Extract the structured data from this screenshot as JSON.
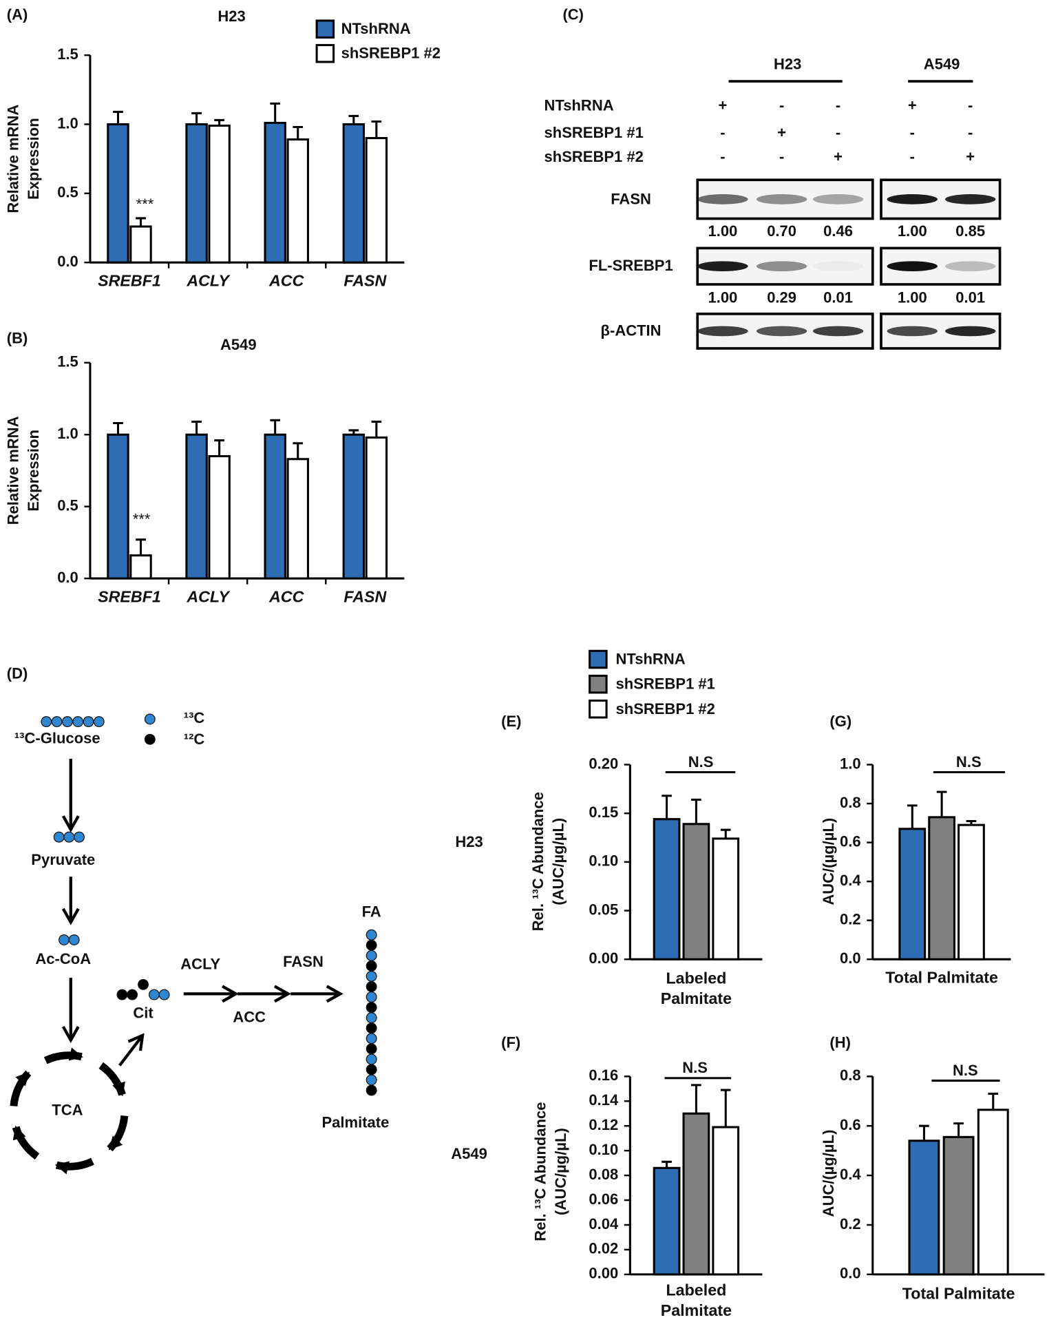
{
  "chart_data": [
    {
      "type": "bar",
      "panel": "(A)",
      "title": "H23",
      "y_label": [
        "Relative mRNA",
        "Expression"
      ],
      "categories": [
        "SREBF1",
        "ACLY",
        "ACC",
        "FASN"
      ],
      "series": [
        {
          "name": "NTshRNA",
          "color": "#2e6db4",
          "values": [
            1.0,
            1.0,
            1.01,
            1.0
          ],
          "errors": [
            0.09,
            0.08,
            0.14,
            0.06
          ]
        },
        {
          "name": "shSREBP1 #2",
          "color": "#ffffff",
          "values": [
            0.26,
            0.99,
            0.89,
            0.9
          ],
          "errors": [
            0.06,
            0.04,
            0.09,
            0.12
          ]
        }
      ],
      "annotation": "***",
      "ylim": [
        0,
        1.5
      ],
      "yticks": [
        {
          "value": 0,
          "label": "0.0"
        },
        0.5,
        {
          "value": 1,
          "label": "1.0"
        },
        1.5
      ],
      "legend": true,
      "grid": false
    },
    {
      "type": "bar",
      "panel": "(B)",
      "title": "A549",
      "y_label": [
        "Relative mRNA",
        "Expression"
      ],
      "categories": [
        "SREBF1",
        "ACLY",
        "ACC",
        "FASN"
      ],
      "series": [
        {
          "color": "#2e6db4",
          "values": [
            1.0,
            1.0,
            1.0,
            1.0
          ],
          "errors": [
            0.08,
            0.09,
            0.1,
            0.03
          ]
        },
        {
          "color": "#ffffff",
          "values": [
            0.16,
            0.85,
            0.83,
            0.98
          ],
          "errors": [
            0.11,
            0.11,
            0.11,
            0.11
          ]
        }
      ],
      "annotation": "***",
      "ylim": [
        0,
        1.5
      ],
      "yticks": [
        {
          "value": 0,
          "label": "0.0"
        },
        0.5,
        {
          "value": 1,
          "label": "1.0"
        },
        1.5
      ],
      "legend": false,
      "grid": false
    },
    {
      "type": "bar",
      "panel": "(E)",
      "row_label": "H23",
      "y_label": [
        "Rel. ¹³C Abundance",
        "(AUC/µg/µL)"
      ],
      "categories": [
        "Labeled Palmitate"
      ],
      "series": [
        {
          "name": "NTshRNA",
          "color": "#2e6db4",
          "values": [
            0.144
          ],
          "errors": [
            0.024
          ]
        },
        {
          "name": "shSREBP1 #1",
          "color": "#808080",
          "values": [
            0.139
          ],
          "errors": [
            0.025
          ]
        },
        {
          "name": "shSREBP1 #2",
          "color": "#ffffff",
          "values": [
            0.124
          ],
          "errors": [
            0.009
          ]
        }
      ],
      "annotation": "N.S",
      "ylim": [
        0,
        0.2
      ],
      "yticks": [
        {
          "value": 0,
          "label": "0.00"
        },
        0.05,
        {
          "value": 0.1,
          "label": "0.10"
        },
        0.15,
        {
          "value": 0.2,
          "label": "0.20"
        }
      ],
      "legend": true,
      "grid": false
    },
    {
      "type": "bar",
      "panel": "(G)",
      "y_label": [
        "AUC/(µg/µL)"
      ],
      "categories": [
        "Total Palmitate"
      ],
      "series": [
        {
          "color": "#2e6db4",
          "values": [
            0.67
          ],
          "errors": [
            0.12
          ]
        },
        {
          "color": "#808080",
          "values": [
            0.73
          ],
          "errors": [
            0.13
          ]
        },
        {
          "color": "#ffffff",
          "values": [
            0.69
          ],
          "errors": [
            0.02
          ]
        }
      ],
      "annotation": "N.S",
      "ylim": [
        0,
        1
      ],
      "yticks": [
        {
          "value": 0,
          "label": "0.0"
        },
        0.2,
        0.4,
        0.6,
        0.8,
        {
          "value": 1,
          "label": "1.0"
        }
      ],
      "legend": false,
      "grid": false
    },
    {
      "type": "bar",
      "panel": "(F)",
      "row_label": "A549",
      "y_label": [
        "Rel. ¹³C Abundance",
        "(AUC/µg/µL)"
      ],
      "categories": [
        "Labeled Palmitate"
      ],
      "series": [
        {
          "color": "#2e6db4",
          "values": [
            0.086
          ],
          "errors": [
            0.005
          ]
        },
        {
          "color": "#808080",
          "values": [
            0.13
          ],
          "errors": [
            0.023
          ]
        },
        {
          "color": "#ffffff",
          "values": [
            0.119
          ],
          "errors": [
            0.03
          ]
        }
      ],
      "annotation": "N.S",
      "ylim": [
        0,
        0.16
      ],
      "yticks": [
        {
          "value": 0,
          "label": "0.00"
        },
        0.02,
        0.04,
        0.06,
        0.08,
        {
          "value": 0.1,
          "label": "0.10"
        },
        0.12,
        0.14,
        0.16
      ],
      "legend": false,
      "grid": false
    },
    {
      "type": "bar",
      "panel": "(H)",
      "y_label": [
        "AUC/(µg/µL)"
      ],
      "categories": [
        "Total Palmitate"
      ],
      "series": [
        {
          "color": "#2e6db4",
          "values": [
            0.54
          ],
          "errors": [
            0.06
          ]
        },
        {
          "color": "#808080",
          "values": [
            0.555
          ],
          "errors": [
            0.055
          ]
        },
        {
          "color": "#ffffff",
          "values": [
            0.665
          ],
          "errors": [
            0.065
          ]
        }
      ],
      "annotation": "N.S",
      "ylim": [
        0,
        0.8
      ],
      "yticks": [
        {
          "value": 0,
          "label": "0.0"
        },
        0.2,
        0.4,
        0.6,
        0.8
      ],
      "legend": false,
      "grid": false
    }
  ],
  "blot": {
    "panel": "(C)",
    "groups": [
      "H23",
      "A549"
    ],
    "conditions": [
      {
        "name": "NTshRNA",
        "marks": [
          "+",
          "-",
          "-",
          "+",
          "-"
        ]
      },
      {
        "name": "shSREBP1 #1",
        "marks": [
          "-",
          "+",
          "-",
          "-",
          "-"
        ]
      },
      {
        "name": "shSREBP1 #2",
        "marks": [
          "-",
          "-",
          "+",
          "-",
          "+"
        ]
      }
    ],
    "rows": [
      {
        "name": "FASN",
        "quant": [
          "1.00",
          "0.70",
          "0.46",
          "1.00",
          "0.85"
        ]
      },
      {
        "name": "FL-SREBP1",
        "quant": [
          "1.00",
          "0.29",
          "0.01",
          "1.00",
          "0.01"
        ]
      },
      {
        "name": "β-ACTIN"
      }
    ]
  },
  "diagram": {
    "panel": "(D)",
    "legend": [
      "¹³C",
      "¹²C"
    ],
    "glucose": "¹³C-Glucose",
    "pyruvate": "Pyruvate",
    "acetyl_coa": "Ac-CoA",
    "citrate": "Cit",
    "cycle": "TCA",
    "enzymes": [
      "ACLY",
      "ACC",
      "FASN"
    ],
    "fatty_acid": "FA",
    "product": "Palmitate"
  }
}
